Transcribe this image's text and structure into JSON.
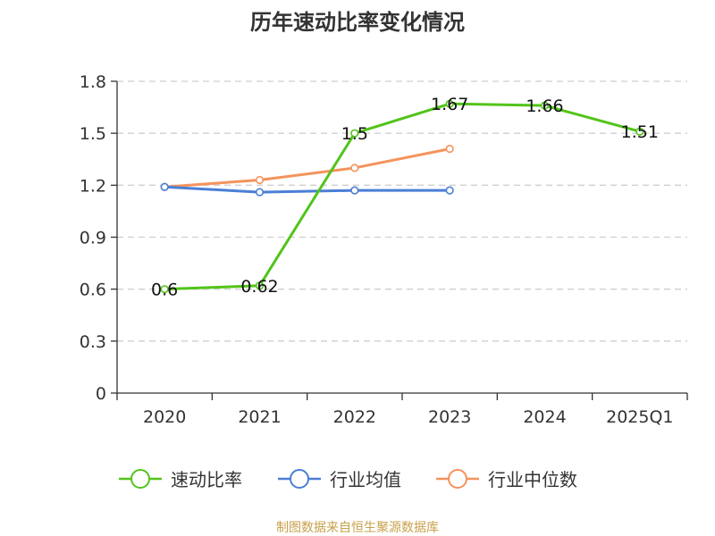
{
  "chart_data": {
    "type": "line",
    "title": "历年速动比率变化情况",
    "categories": [
      "2020",
      "2021",
      "2022",
      "2023",
      "2024",
      "2025Q1"
    ],
    "ylim": [
      0,
      1.8
    ],
    "yticks": [
      "0",
      "0.3",
      "0.6",
      "0.9",
      "1.2",
      "1.5",
      "1.8"
    ],
    "grid": true,
    "legend_position": "bottom",
    "series": [
      {
        "name": "速动比率",
        "color": "#52c41a",
        "values": [
          0.6,
          0.62,
          1.5,
          1.67,
          1.66,
          1.51
        ],
        "labels": [
          "0.6",
          "0.62",
          "1.5",
          "1.67",
          "1.66",
          "1.51"
        ],
        "show_labels": true
      },
      {
        "name": "行业均值",
        "color": "#4a7fd6",
        "values": [
          1.19,
          1.16,
          1.17,
          1.17,
          null,
          null
        ],
        "show_labels": false
      },
      {
        "name": "行业中位数",
        "color": "#f4935d",
        "values": [
          1.19,
          1.23,
          1.3,
          1.41,
          null,
          null
        ],
        "show_labels": false
      }
    ]
  },
  "source": "制图数据来自恒生聚源数据库"
}
